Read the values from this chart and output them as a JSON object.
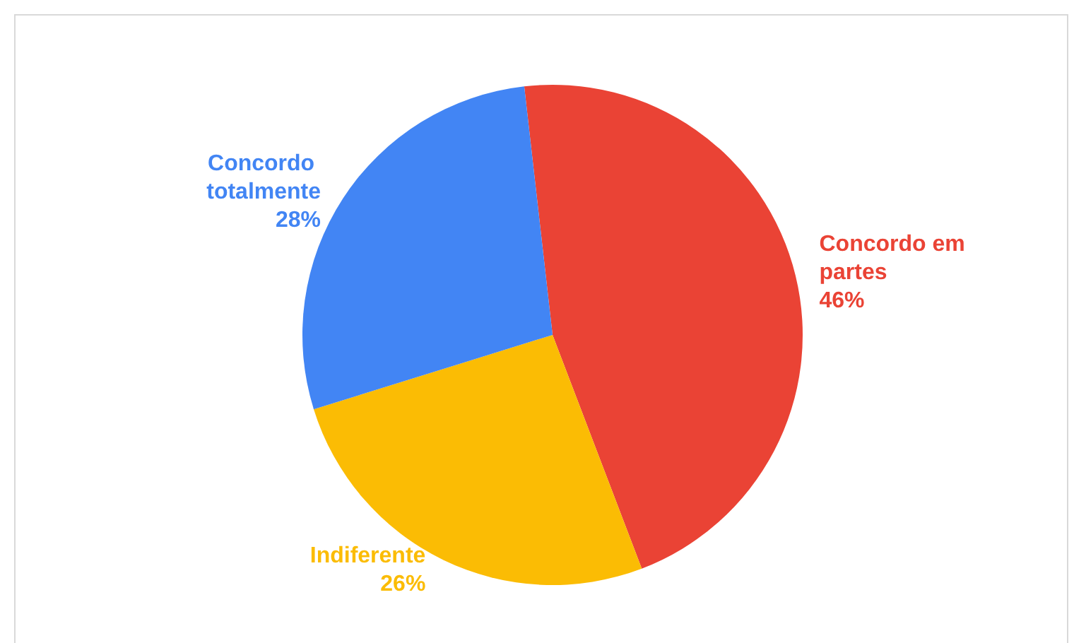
{
  "chart_data": {
    "type": "pie",
    "categories": [
      "Concordo em partes",
      "Indiferente",
      "Concordo totalmente"
    ],
    "values": [
      46,
      26,
      28
    ],
    "value_labels": [
      "46%",
      "26%",
      "28%"
    ],
    "colors": [
      "#ea4335",
      "#fbbc04",
      "#4285f4"
    ],
    "legend": false
  }
}
